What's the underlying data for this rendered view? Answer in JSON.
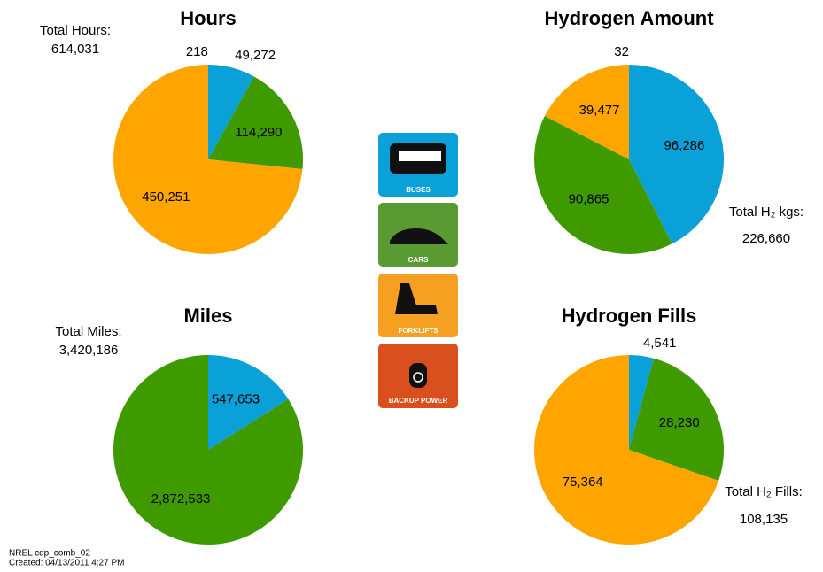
{
  "chart_data": [
    {
      "type": "pie",
      "title": "Hours",
      "categories": [
        "BUSES",
        "CARS",
        "FORKLIFTS",
        "BACKUP POWER"
      ],
      "values": [
        49272,
        114290,
        450251,
        218
      ],
      "value_labels": [
        "49,272",
        "114,290",
        "450,251",
        "218"
      ],
      "colors": [
        "#0aa0d8",
        "#3f9a00",
        "#ffa500",
        "#d9501e"
      ],
      "annotations": [
        "Total Hours:",
        "614,031"
      ]
    },
    {
      "type": "pie",
      "title": "Hydrogen Amount",
      "categories": [
        "BUSES",
        "CARS",
        "FORKLIFTS",
        "BACKUP POWER"
      ],
      "values": [
        96286,
        90865,
        39477,
        32
      ],
      "value_labels": [
        "96,286",
        "90,865",
        "39,477",
        "32"
      ],
      "colors": [
        "#0aa0d8",
        "#3f9a00",
        "#ffa500",
        "#d9501e"
      ],
      "annotations": [
        "Total H₂ kgs:",
        "226,660"
      ]
    },
    {
      "type": "pie",
      "title": "Miles",
      "categories": [
        "BUSES",
        "CARS"
      ],
      "values": [
        547653,
        2872533
      ],
      "value_labels": [
        "547,653",
        "2,872,533"
      ],
      "colors": [
        "#0aa0d8",
        "#3f9a00"
      ],
      "annotations": [
        "Total Miles:",
        "3,420,186"
      ]
    },
    {
      "type": "pie",
      "title": "Hydrogen Fills",
      "categories": [
        "BUSES",
        "CARS",
        "FORKLIFTS"
      ],
      "values": [
        4541,
        28230,
        75364
      ],
      "value_labels": [
        "4,541",
        "28,230",
        "75,364"
      ],
      "colors": [
        "#0aa0d8",
        "#3f9a00",
        "#ffa500"
      ],
      "annotations": [
        "Total H₂ Fills:",
        "108,135"
      ]
    }
  ],
  "legend": [
    {
      "label": "BUSES",
      "color": "#0aa0d8"
    },
    {
      "label": "CARS",
      "color": "#5a9a32"
    },
    {
      "label": "FORKLIFTS",
      "color": "#f5a020"
    },
    {
      "label": "BACKUP POWER",
      "color": "#d9501e"
    }
  ],
  "footer": [
    "NREL cdp_comb_02",
    "Created: 04/13/2011 4:27 PM"
  ]
}
